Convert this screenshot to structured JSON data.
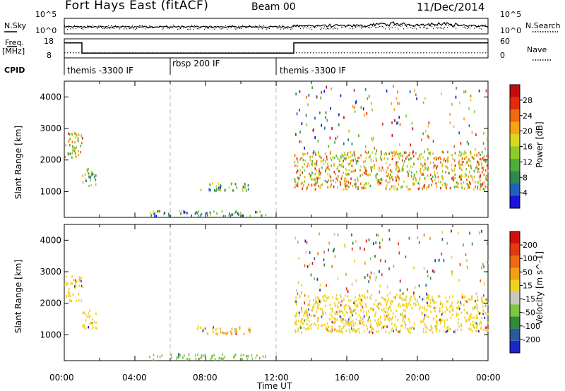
{
  "header": {
    "station": "Fort Hays East (fitACF)",
    "beam": "Beam 00",
    "date": "11/Dec/2014"
  },
  "noise_panel": {
    "left_label": "N.Sky",
    "right_label": "N.Search",
    "y_ticks": [
      "10^5",
      "10^0"
    ]
  },
  "freq_panel": {
    "left_label_line1": "Freq.",
    "left_label_line2": "[MHz]",
    "right_label": "Nave",
    "left_ticks": [
      "18",
      "8"
    ],
    "right_ticks": [
      "60",
      "0"
    ],
    "freq_steps": [
      {
        "from": 0,
        "to": 1,
        "value": 16
      },
      {
        "from": 1,
        "to": 13,
        "value": 10
      },
      {
        "from": 13,
        "to": 24,
        "value": 16
      }
    ],
    "nave_level": 16
  },
  "cpid": {
    "label": "CPID",
    "segments": [
      {
        "start": 0,
        "name": "themis -3300 IF"
      },
      {
        "start": 6,
        "name": "rbsp 200 IF"
      },
      {
        "start": 12,
        "name": "themis -3300 IF"
      }
    ]
  },
  "x_axis": {
    "label": "Time UT",
    "ticks": [
      "00:00",
      "04:00",
      "08:00",
      "12:00",
      "16:00",
      "20:00",
      "00:00"
    ]
  },
  "chart_data": [
    {
      "type": "heatmap",
      "quantity": "Power",
      "ylabel": "Slant Range [km]",
      "xlabel": "Time UT",
      "xlim": [
        0,
        24
      ],
      "ylim": [
        180,
        4500
      ],
      "y_ticks": [
        1000,
        2000,
        3000,
        4000
      ],
      "colorbar_label": "Power [dB]",
      "colorbar_ticks": [
        "4",
        "8",
        "12",
        "16",
        "20",
        "24",
        "28"
      ],
      "colorbar_colors": [
        "#1a14d8",
        "#2060b8",
        "#2a8a52",
        "#4fae3a",
        "#8ccc28",
        "#d8d820",
        "#f5a514",
        "#f06a10",
        "#e22a0e",
        "#c40c0c"
      ],
      "regions": [
        {
          "t0": 0.0,
          "t1": 1.0,
          "r0": 2100,
          "r1": 2900,
          "level": 0.55
        },
        {
          "t0": 1.0,
          "t1": 1.8,
          "r0": 1200,
          "r1": 1800,
          "level": 0.4
        },
        {
          "t0": 7.5,
          "t1": 10.5,
          "r0": 1050,
          "r1": 1300,
          "level": 0.35
        },
        {
          "t0": 4.8,
          "t1": 11.5,
          "r0": 250,
          "r1": 420,
          "level": 0.3
        },
        {
          "t0": 13.0,
          "t1": 24.0,
          "r0": 1100,
          "r1": 2300,
          "level": 0.6
        }
      ]
    },
    {
      "type": "heatmap",
      "quantity": "Velocity",
      "ylabel": "Slant Range [km]",
      "xlabel": "Time UT",
      "xlim": [
        0,
        24
      ],
      "ylim": [
        180,
        4500
      ],
      "y_ticks": [
        1000,
        2000,
        3000,
        4000
      ],
      "colorbar_label": "Velocity [m s^-1]",
      "colorbar_ticks": [
        "200",
        "100",
        "50",
        "15",
        "-15",
        "-50",
        "-100",
        "-200"
      ],
      "colorbar_colors": [
        "#1a28c8",
        "#2a5a9a",
        "#2f8a3a",
        "#7cc640",
        "#c8c8c0",
        "#f0d21e",
        "#f4a014",
        "#f06a10",
        "#e23a0e",
        "#d01010"
      ],
      "regions": [
        {
          "t0": 0.0,
          "t1": 1.0,
          "r0": 2100,
          "r1": 2900,
          "level": 0.5
        },
        {
          "t0": 1.0,
          "t1": 1.8,
          "r0": 1200,
          "r1": 1800,
          "level": 0.5
        },
        {
          "t0": 7.5,
          "t1": 8.8,
          "r0": 1050,
          "r1": 1300,
          "level": 0.5
        },
        {
          "t0": 8.8,
          "t1": 10.5,
          "r0": 1050,
          "r1": 1300,
          "level": 0.65
        },
        {
          "t0": 4.8,
          "t1": 11.5,
          "r0": 250,
          "r1": 420,
          "level": 0.35
        },
        {
          "t0": 13.0,
          "t1": 24.0,
          "r0": 1100,
          "r1": 2300,
          "level": 0.5
        }
      ]
    }
  ]
}
